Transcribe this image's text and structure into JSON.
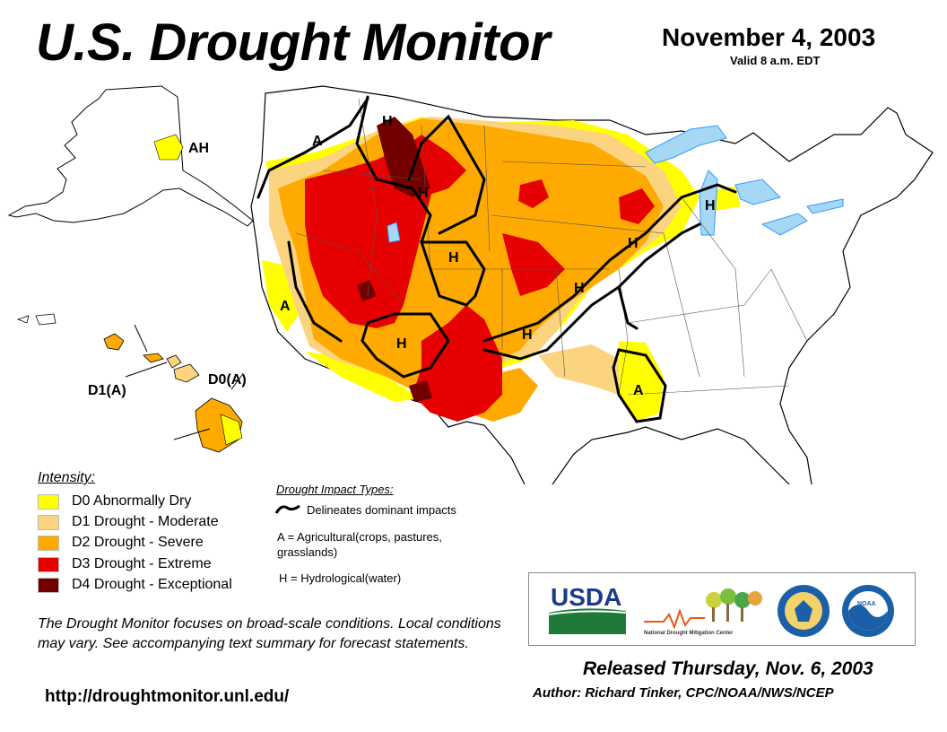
{
  "header": {
    "title": "U.S. Drought Monitor",
    "date": "November 4, 2003",
    "valid": "Valid 8 a.m. EDT"
  },
  "map": {
    "impact_labels": [
      "A",
      "H",
      "H",
      "H",
      "H",
      "H",
      "H",
      "A",
      "H",
      "H",
      "H",
      "A",
      "A"
    ],
    "alaska_label": "AH",
    "hawaii_label_left": "D1(A)",
    "hawaii_label_right": "D0(A)",
    "colors": {
      "D0": "#ffff00",
      "D1": "#fcd37f",
      "D2": "#ffaa00",
      "D3": "#e60000",
      "D4": "#730000",
      "water": "#3399ff",
      "lake": "#a6d8f5",
      "border": "#000000"
    }
  },
  "legend": {
    "intensity_title": "Intensity:",
    "items": [
      {
        "code": "D0",
        "label": "D0 Abnormally Dry",
        "color": "#ffff00"
      },
      {
        "code": "D1",
        "label": "D1 Drought - Moderate",
        "color": "#fcd37f"
      },
      {
        "code": "D2",
        "label": "D2 Drought - Severe",
        "color": "#ffaa00"
      },
      {
        "code": "D3",
        "label": "D3 Drought - Extreme",
        "color": "#e60000"
      },
      {
        "code": "D4",
        "label": "D4 Drought - Exceptional",
        "color": "#730000"
      }
    ],
    "impact_title": "Drought Impact Types:",
    "impact_delineates": "Delineates dominant impacts",
    "impact_a": "A = Agricultural(crops, pastures, grasslands)",
    "impact_h": "H = Hydrological(water)"
  },
  "note": "The Drought Monitor focuses on broad-scale conditions. Local conditions may vary. See accompanying text summary for forecast statements.",
  "url": "http://droughtmonitor.unl.edu/",
  "logos": {
    "usda": "USDA",
    "ndmc": "National Drought Mitigation Center",
    "noaa": "NOAA"
  },
  "released": "Released Thursday, Nov. 6, 2003",
  "author": "Author: Richard Tinker, CPC/NOAA/NWS/NCEP"
}
